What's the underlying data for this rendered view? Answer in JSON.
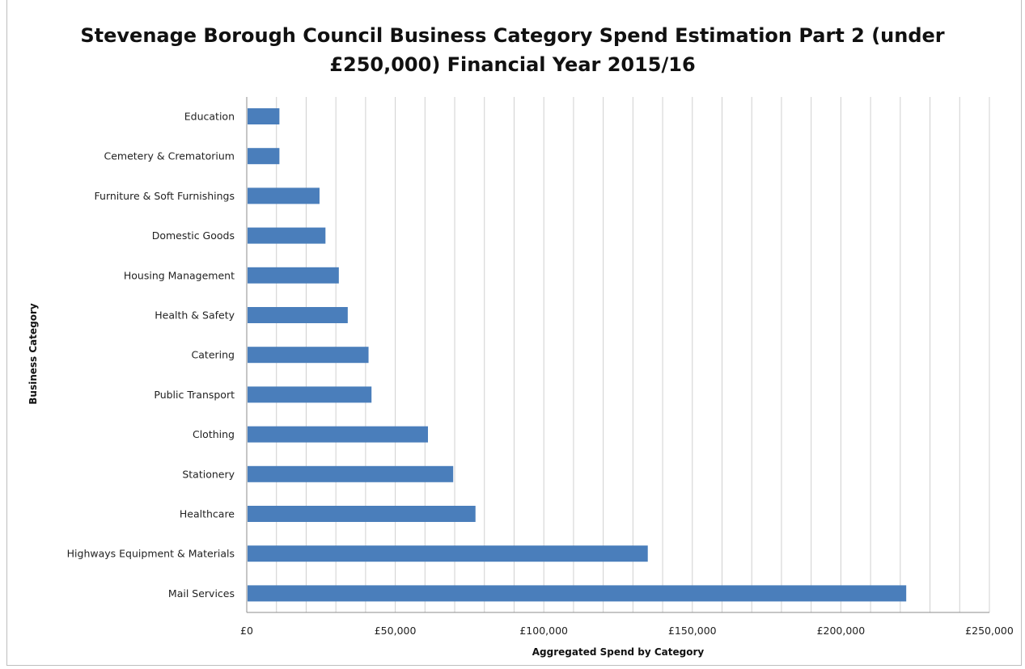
{
  "chart_data": {
    "type": "bar",
    "orientation": "horizontal",
    "title_line1": "Stevenage Borough Council Business Category Spend Estimation Part 2 (under",
    "title_line2": "£250,000) Financial Year 2015/16",
    "xlabel": "Aggregated Spend by Category",
    "ylabel": "Business Category",
    "xlim": [
      0,
      250000
    ],
    "grid": true,
    "bar_color": "#4a7ebb",
    "x_ticks": [
      {
        "value": 0,
        "label": "£0"
      },
      {
        "value": 50000,
        "label": "£50,000"
      },
      {
        "value": 100000,
        "label": "£100,000"
      },
      {
        "value": 150000,
        "label": "£150,000"
      },
      {
        "value": 200000,
        "label": "£200,000"
      },
      {
        "value": 250000,
        "label": "£250,000"
      }
    ],
    "categories": [
      "Education",
      "Cemetery & Crematorium",
      "Furniture & Soft Furnishings",
      "Domestic Goods",
      "Housing Management",
      "Health & Safety",
      "Catering",
      "Public Transport",
      "Clothing",
      "Stationery",
      "Healthcare",
      "Highways Equipment & Materials",
      "Mail Services"
    ],
    "values": [
      11000,
      11000,
      24500,
      26500,
      31000,
      34000,
      41000,
      42000,
      61000,
      69500,
      77000,
      135000,
      222000
    ]
  }
}
